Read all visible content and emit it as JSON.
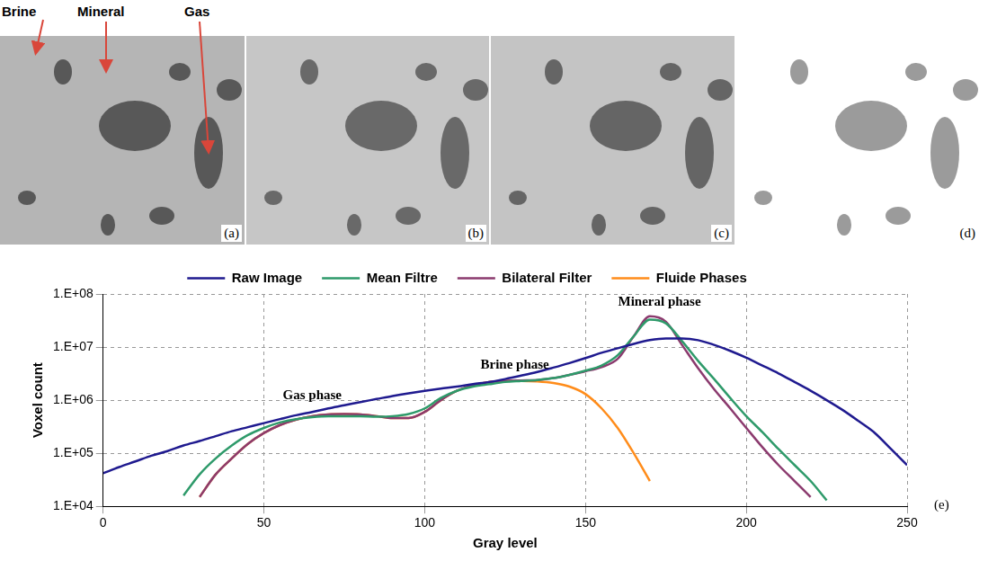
{
  "panels": [
    {
      "label": "(a)",
      "annotations": [
        "Brine",
        "Mineral",
        "Gas"
      ]
    },
    {
      "label": "(b)"
    },
    {
      "label": "(c)"
    },
    {
      "label": "(d)"
    }
  ],
  "chart_data": {
    "type": "line",
    "panel_label": "(e)",
    "x_label": "Gray level",
    "y_label": "Voxel count",
    "log": "y",
    "grid": true,
    "legend": "top",
    "xlim": [
      0,
      250
    ],
    "xticks": [
      0,
      50,
      100,
      150,
      200,
      250
    ],
    "ylim": [
      10000,
      100000000
    ],
    "yticks": [
      {
        "value": 10000,
        "label": "1.E+04"
      },
      {
        "value": 100000,
        "label": "1.E+05"
      },
      {
        "value": 1000000,
        "label": "1.E+06"
      },
      {
        "value": 10000000,
        "label": "1.E+07"
      },
      {
        "value": 100000000,
        "label": "1.E+08"
      }
    ],
    "annotations": [
      {
        "text": "Gas phase",
        "x": 65,
        "y": 1200000
      },
      {
        "text": "Brine phase",
        "x": 128,
        "y": 4500000
      },
      {
        "text": "Mineral phase",
        "x": 173,
        "y": 70000000
      }
    ],
    "x": [
      0,
      5,
      10,
      15,
      20,
      25,
      30,
      35,
      40,
      45,
      50,
      55,
      60,
      65,
      70,
      75,
      80,
      85,
      90,
      95,
      100,
      105,
      110,
      115,
      120,
      125,
      130,
      135,
      140,
      145,
      150,
      155,
      160,
      165,
      170,
      175,
      180,
      185,
      190,
      195,
      200,
      205,
      210,
      215,
      220,
      225,
      230,
      235,
      240,
      245,
      250
    ],
    "series": [
      {
        "name": "Raw Image",
        "color": "#1f1a8f",
        "values": [
          42000,
          55000,
          70000,
          90000,
          110000,
          140000,
          170000,
          210000,
          260000,
          310000,
          370000,
          440000,
          520000,
          600000,
          700000,
          800000,
          920000,
          1050000,
          1200000,
          1350000,
          1500000,
          1650000,
          1800000,
          2000000,
          2200000,
          2500000,
          2900000,
          3400000,
          4100000,
          5000000,
          6200000,
          7800000,
          9500000,
          11500000,
          13500000,
          14500000,
          14500000,
          13500000,
          11000000,
          8500000,
          6300000,
          4500000,
          3200000,
          2200000,
          1500000,
          1000000,
          650000,
          400000,
          240000,
          120000,
          60000
        ]
      },
      {
        "name": "Mean Filtre",
        "color": "#2e9a6a",
        "values": [
          null,
          null,
          null,
          null,
          null,
          16000,
          40000,
          80000,
          140000,
          220000,
          300000,
          380000,
          440000,
          480000,
          500000,
          500000,
          500000,
          490000,
          500000,
          550000,
          700000,
          1100000,
          1500000,
          1800000,
          2000000,
          2200000,
          2300000,
          2400000,
          2600000,
          3000000,
          3600000,
          4500000,
          7000000,
          16000000,
          33000000,
          28000000,
          13000000,
          5500000,
          2500000,
          1100000,
          500000,
          250000,
          120000,
          60000,
          30000,
          13000,
          null,
          null,
          null,
          null,
          null
        ]
      },
      {
        "name": "Bilateral Filter",
        "color": "#8b3a6e",
        "values": [
          null,
          null,
          null,
          null,
          null,
          null,
          15000,
          40000,
          80000,
          150000,
          240000,
          340000,
          430000,
          500000,
          540000,
          550000,
          540000,
          500000,
          460000,
          460000,
          600000,
          1000000,
          1500000,
          1900000,
          2200000,
          2300000,
          2350000,
          2400000,
          2600000,
          3000000,
          3500000,
          4200000,
          6000000,
          16000000,
          38000000,
          30000000,
          11000000,
          4000000,
          1600000,
          700000,
          300000,
          130000,
          60000,
          30000,
          15000,
          null,
          null,
          null,
          null,
          null,
          null
        ]
      },
      {
        "name": "Fluide Phases",
        "color": "#ff8c1a",
        "values": [
          null,
          null,
          null,
          null,
          null,
          null,
          15000,
          40000,
          80000,
          150000,
          240000,
          340000,
          430000,
          500000,
          540000,
          550000,
          540000,
          500000,
          460000,
          460000,
          600000,
          1000000,
          1500000,
          1900000,
          2200000,
          2300000,
          2300000,
          2250000,
          2100000,
          1800000,
          1300000,
          700000,
          300000,
          100000,
          30000,
          null,
          null,
          null,
          null,
          null,
          null,
          null,
          null,
          null,
          null,
          null,
          null,
          null,
          null,
          null,
          null
        ]
      }
    ]
  }
}
